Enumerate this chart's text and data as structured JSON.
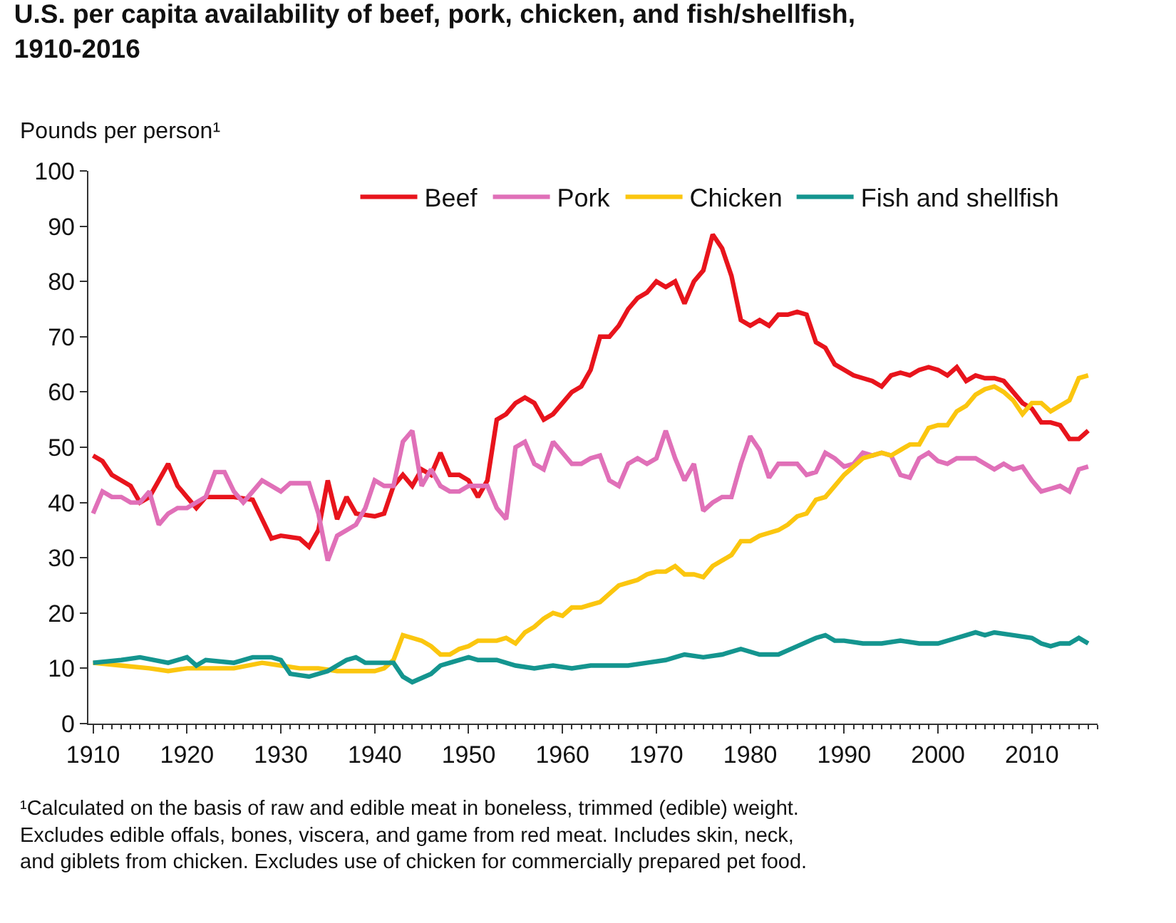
{
  "chart_data": {
    "type": "line",
    "title": "U.S. per capita availability of beef, pork, chicken, and fish/shellfish,\n1910-2016",
    "ylabel": "Pounds per person¹",
    "annotations": [
      "¹Calculated on the basis of raw and edible meat in boneless, trimmed (edible) weight.\nExcludes edible offals, bones, viscera, and game from red meat. Includes skin, neck,\nand giblets from chicken. Excludes use of chicken for commercially prepared pet food."
    ],
    "xlim": [
      1909.5,
      2017
    ],
    "xticks": [
      1910,
      1920,
      1930,
      1940,
      1950,
      1960,
      1970,
      1980,
      1990,
      2000,
      2010
    ],
    "ylim": [
      0,
      100
    ],
    "yticks": [
      0,
      10,
      20,
      30,
      40,
      50,
      60,
      70,
      80,
      90,
      100
    ],
    "legend": "top",
    "marker": "none",
    "line_style": "solid",
    "series": [
      {
        "name": "Beef",
        "color": "#e8141c",
        "x": [
          1910,
          1911,
          1912,
          1913,
          1914,
          1915,
          1916,
          1917,
          1918,
          1919,
          1920,
          1921,
          1922,
          1925,
          1927,
          1928,
          1929,
          1930,
          1932,
          1933,
          1934,
          1935,
          1936,
          1937,
          1938,
          1940,
          1941,
          1942,
          1943,
          1944,
          1945,
          1946,
          1947,
          1948,
          1949,
          1950,
          1951,
          1952,
          1953,
          1954,
          1955,
          1956,
          1957,
          1958,
          1959,
          1960,
          1961,
          1962,
          1963,
          1964,
          1965,
          1966,
          1967,
          1968,
          1969,
          1970,
          1971,
          1972,
          1973,
          1974,
          1975,
          1976,
          1977,
          1978,
          1979,
          1980,
          1981,
          1982,
          1983,
          1984,
          1985,
          1986,
          1987,
          1988,
          1989,
          1990,
          1991,
          1992,
          1993,
          1994,
          1995,
          1996,
          1997,
          1998,
          1999,
          2000,
          2001,
          2002,
          2003,
          2004,
          2005,
          2006,
          2007,
          2008,
          2009,
          2010,
          2011,
          2012,
          2013,
          2014,
          2015,
          2016
        ],
        "values": [
          48.5,
          47.5,
          45,
          44,
          43,
          40,
          41,
          44,
          47,
          43,
          41,
          39,
          41,
          41,
          40.5,
          37,
          33.5,
          34,
          33.5,
          32,
          35,
          44,
          37,
          41,
          38,
          37.5,
          38,
          43,
          45,
          43,
          46,
          45,
          49,
          45,
          45,
          44,
          41,
          44,
          55,
          56,
          58,
          59,
          58,
          55,
          56,
          58,
          60,
          61,
          64,
          70,
          70,
          72,
          75,
          77,
          78,
          80,
          79,
          80,
          76,
          80,
          82,
          88.5,
          86,
          81,
          73,
          72,
          73,
          72,
          74,
          74,
          74.5,
          74,
          69,
          68,
          65,
          64,
          63,
          62.5,
          62,
          61,
          63,
          63.5,
          63,
          64,
          64.5,
          64,
          63,
          64.5,
          62,
          63,
          62.5,
          62.5,
          62,
          60,
          58,
          57,
          54.5,
          54.5,
          54,
          51.5,
          51.5,
          53
        ]
      },
      {
        "name": "Pork",
        "color": "#e070b8",
        "x": [
          1910,
          1911,
          1912,
          1913,
          1914,
          1915,
          1916,
          1917,
          1918,
          1919,
          1920,
          1921,
          1922,
          1923,
          1924,
          1925,
          1926,
          1927,
          1928,
          1929,
          1930,
          1931,
          1932,
          1933,
          1934,
          1935,
          1936,
          1937,
          1938,
          1939,
          1940,
          1941,
          1942,
          1943,
          1944,
          1945,
          1946,
          1947,
          1948,
          1949,
          1950,
          1951,
          1952,
          1953,
          1954,
          1955,
          1956,
          1957,
          1958,
          1959,
          1960,
          1961,
          1962,
          1963,
          1964,
          1965,
          1966,
          1967,
          1968,
          1969,
          1970,
          1971,
          1972,
          1973,
          1974,
          1975,
          1976,
          1977,
          1978,
          1979,
          1980,
          1981,
          1982,
          1983,
          1984,
          1985,
          1986,
          1987,
          1988,
          1989,
          1990,
          1991,
          1992,
          1993,
          1994,
          1995,
          1996,
          1997,
          1998,
          1999,
          2000,
          2001,
          2002,
          2003,
          2004,
          2005,
          2006,
          2007,
          2008,
          2009,
          2010,
          2011,
          2012,
          2013,
          2014,
          2015,
          2016
        ],
        "values": [
          38,
          42,
          41,
          41,
          40,
          40,
          42,
          36,
          38,
          39,
          39,
          40,
          41,
          45.5,
          45.5,
          42,
          40,
          42,
          44,
          43,
          42,
          43.5,
          43.5,
          43.5,
          38,
          29.5,
          34,
          35,
          36,
          39,
          44,
          43,
          43,
          51,
          53,
          43,
          46,
          43,
          42,
          42,
          43,
          43,
          43,
          39,
          37,
          50,
          51,
          47,
          46,
          51,
          49,
          47,
          47,
          48,
          48.5,
          44,
          43,
          47,
          48,
          47,
          48,
          53,
          48,
          44,
          47,
          38.5,
          40,
          41,
          41,
          47,
          52,
          49.5,
          44.5,
          47,
          47,
          47,
          45,
          45.5,
          49,
          48,
          46.5,
          47,
          49,
          48.5,
          49,
          48.5,
          45,
          44.5,
          48,
          49,
          47.5,
          47,
          48,
          48,
          48,
          47,
          46,
          47,
          46,
          46.5,
          44,
          42,
          42.5,
          43,
          42,
          46,
          46.5
        ]
      },
      {
        "name": "Chicken",
        "color": "#fbc60f",
        "x": [
          1910,
          1913,
          1916,
          1918,
          1920,
          1922,
          1925,
          1928,
          1930,
          1932,
          1934,
          1936,
          1938,
          1940,
          1941,
          1942,
          1943,
          1944,
          1945,
          1946,
          1947,
          1948,
          1949,
          1950,
          1951,
          1952,
          1953,
          1954,
          1955,
          1956,
          1957,
          1958,
          1959,
          1960,
          1961,
          1962,
          1963,
          1964,
          1965,
          1966,
          1967,
          1968,
          1969,
          1970,
          1971,
          1972,
          1973,
          1974,
          1975,
          1976,
          1977,
          1978,
          1979,
          1980,
          1981,
          1982,
          1983,
          1984,
          1985,
          1986,
          1987,
          1988,
          1989,
          1990,
          1991,
          1992,
          1993,
          1994,
          1995,
          1996,
          1997,
          1998,
          1999,
          2000,
          2001,
          2002,
          2003,
          2004,
          2005,
          2006,
          2007,
          2008,
          2009,
          2010,
          2011,
          2012,
          2013,
          2014,
          2015,
          2016
        ],
        "values": [
          11,
          10.5,
          10,
          9.5,
          10,
          10,
          10,
          11,
          10.5,
          10,
          10,
          9.5,
          9.5,
          9.5,
          10,
          11.5,
          16,
          15.5,
          15,
          14,
          12.5,
          12.5,
          13.5,
          14,
          15,
          15,
          15,
          15.5,
          14.5,
          16.5,
          17.5,
          19,
          20,
          19.5,
          21,
          21,
          21.5,
          22,
          23.5,
          25,
          25.5,
          26,
          27,
          27.5,
          27.5,
          28.5,
          27,
          27,
          26.5,
          28.5,
          29.5,
          30.5,
          33,
          33,
          34,
          34.5,
          35,
          36,
          37.5,
          38,
          40.5,
          41,
          43,
          45,
          46.5,
          48,
          48.5,
          49,
          48.5,
          49.5,
          50.5,
          50.5,
          53.5,
          54,
          54,
          56.5,
          57.5,
          59.5,
          60.5,
          61,
          60,
          58.5,
          56,
          58,
          58,
          56.5,
          57.5,
          58.5,
          62.5,
          63
        ]
      },
      {
        "name": "Fish and shellfish",
        "color": "#14958f",
        "x": [
          1910,
          1913,
          1915,
          1918,
          1920,
          1921,
          1922,
          1925,
          1927,
          1929,
          1930,
          1931,
          1933,
          1935,
          1937,
          1938,
          1939,
          1940,
          1942,
          1943,
          1944,
          1946,
          1947,
          1948,
          1950,
          1951,
          1953,
          1955,
          1957,
          1959,
          1961,
          1963,
          1965,
          1967,
          1969,
          1971,
          1972,
          1973,
          1975,
          1977,
          1979,
          1981,
          1983,
          1985,
          1987,
          1988,
          1989,
          1990,
          1992,
          1994,
          1996,
          1998,
          2000,
          2002,
          2003,
          2004,
          2005,
          2006,
          2008,
          2010,
          2011,
          2012,
          2013,
          2014,
          2015,
          2016
        ],
        "values": [
          11,
          11.5,
          12,
          11,
          12,
          10.5,
          11.5,
          11,
          12,
          12,
          11.5,
          9,
          8.5,
          9.5,
          11.5,
          12,
          11,
          11,
          11,
          8.5,
          7.5,
          9,
          10.5,
          11,
          12,
          11.5,
          11.5,
          10.5,
          10,
          10.5,
          10,
          10.5,
          10.5,
          10.5,
          11,
          11.5,
          12,
          12.5,
          12,
          12.5,
          13.5,
          12.5,
          12.5,
          14,
          15.5,
          16,
          15,
          15,
          14.5,
          14.5,
          15,
          14.5,
          14.5,
          15.5,
          16,
          16.5,
          16,
          16.5,
          16,
          15.5,
          14.5,
          14,
          14.5,
          14.5,
          15.5,
          14.5
        ]
      }
    ]
  }
}
